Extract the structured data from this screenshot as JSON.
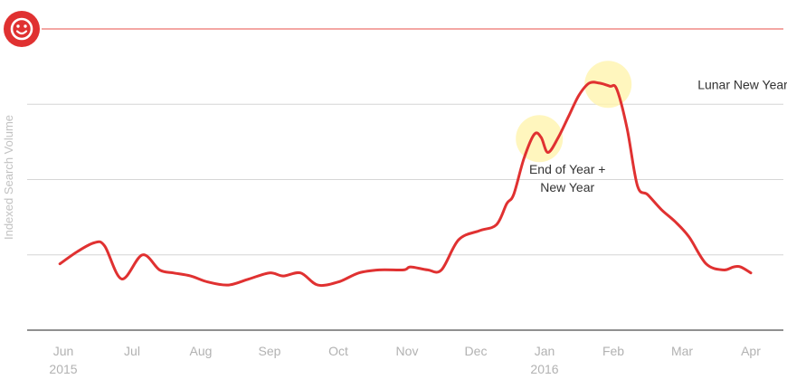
{
  "chart_data": {
    "type": "line",
    "ylabel": "Indexed Search Volume",
    "xlabel": "",
    "title": "",
    "grid": true,
    "ylim": [
      0,
      100
    ],
    "yticks": [
      0,
      25,
      50,
      75,
      100
    ],
    "x_range": [
      0,
      10.05
    ],
    "x_ticks": [
      {
        "pos": 0,
        "label": "Jun",
        "year": "2015"
      },
      {
        "pos": 1,
        "label": "Jul",
        "year": ""
      },
      {
        "pos": 2,
        "label": "Aug",
        "year": ""
      },
      {
        "pos": 3,
        "label": "Sep",
        "year": ""
      },
      {
        "pos": 4,
        "label": "Oct",
        "year": ""
      },
      {
        "pos": 5,
        "label": "Nov",
        "year": ""
      },
      {
        "pos": 6,
        "label": "Dec",
        "year": ""
      },
      {
        "pos": 7,
        "label": "Jan",
        "year": "2016"
      },
      {
        "pos": 8,
        "label": "Feb",
        "year": ""
      },
      {
        "pos": 9,
        "label": "Mar",
        "year": ""
      },
      {
        "pos": 10,
        "label": "Apr",
        "year": ""
      }
    ],
    "series": [
      {
        "name": "",
        "color": "#e03131",
        "x": [
          -0.05,
          0.2,
          0.45,
          0.6,
          0.85,
          1.15,
          1.4,
          1.6,
          1.85,
          2.1,
          2.4,
          2.7,
          3.0,
          3.2,
          3.45,
          3.7,
          4.0,
          4.3,
          4.6,
          4.95,
          5.05,
          5.3,
          5.5,
          5.75,
          6.05,
          6.3,
          6.45,
          6.55,
          6.7,
          6.85,
          6.95,
          7.05,
          7.2,
          7.35,
          7.5,
          7.65,
          7.8,
          7.95,
          8.05,
          8.2,
          8.35,
          8.5,
          8.7,
          8.9,
          9.1,
          9.35,
          9.6,
          9.75,
          9.85,
          10.0
        ],
        "y": [
          22,
          26,
          29,
          28,
          17,
          25,
          20,
          19,
          18,
          16,
          15,
          17,
          19,
          18,
          19,
          15,
          16,
          19,
          20,
          20,
          21,
          20,
          20,
          30,
          33,
          35,
          42,
          45,
          57,
          65,
          64,
          59,
          64,
          71,
          78,
          82,
          82,
          81,
          80,
          67,
          48,
          45,
          40,
          36,
          31,
          22,
          20,
          21,
          21,
          19
        ]
      }
    ],
    "annotations": [
      {
        "text_lines": [
          "End of Year +",
          "New Year"
        ],
        "x": 6.95,
        "y": 63
      },
      {
        "text_lines": [
          "Lunar New Year"
        ],
        "x": 7.95,
        "y": 81
      }
    ],
    "reference_line": {
      "y": 100,
      "color": "#f08a86"
    }
  },
  "badge": {
    "icon": "smiley-icon",
    "color": "#e03131"
  }
}
